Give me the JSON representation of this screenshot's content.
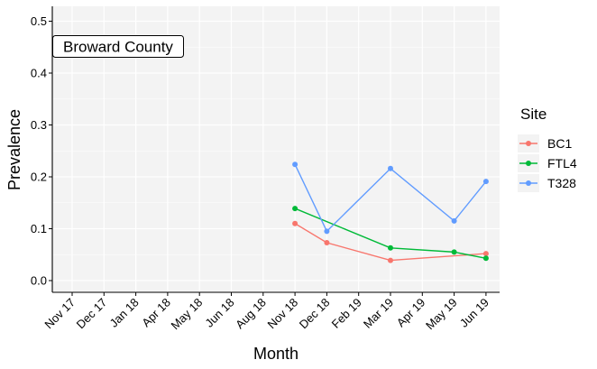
{
  "chart_data": {
    "type": "line",
    "xlabel": "Month",
    "ylabel": "Prevalence",
    "ylim": [
      0,
      0.52
    ],
    "yticks": [
      0.0,
      0.1,
      0.2,
      0.3,
      0.4,
      0.5
    ],
    "ytick_labels": [
      "0.0",
      "0.1",
      "0.2",
      "0.3",
      "0.4",
      "0.5"
    ],
    "x_tick_labels": [
      "Nov 17",
      "Dec 17",
      "Jan 18",
      "Apr 18",
      "May 18",
      "Jun 18",
      "Aug 18",
      "Nov 18",
      "Dec 18",
      "Feb 19",
      "Mar 19",
      "Apr 19",
      "May 19",
      "Jun 19"
    ],
    "annotation": "Broward County",
    "grid": true,
    "legend": {
      "title": "Site",
      "placement": "right"
    },
    "series": [
      {
        "name": "BC1",
        "color": "#F8766D",
        "x": [
          "Nov 18",
          "Dec 18",
          "Mar 19",
          "Jun 19"
        ],
        "values": [
          0.11,
          0.073,
          0.039,
          0.052
        ]
      },
      {
        "name": "FTL4",
        "color": "#00BA38",
        "x": [
          "Nov 18",
          "Mar 19",
          "May 19",
          "Jun 19"
        ],
        "values": [
          0.139,
          0.063,
          0.055,
          0.043
        ]
      },
      {
        "name": "T328",
        "color": "#619CFF",
        "x": [
          "Nov 18",
          "Dec 18",
          "Mar 19",
          "May 19",
          "Jun 19"
        ],
        "values": [
          0.224,
          0.095,
          0.216,
          0.115,
          0.191
        ]
      }
    ]
  }
}
